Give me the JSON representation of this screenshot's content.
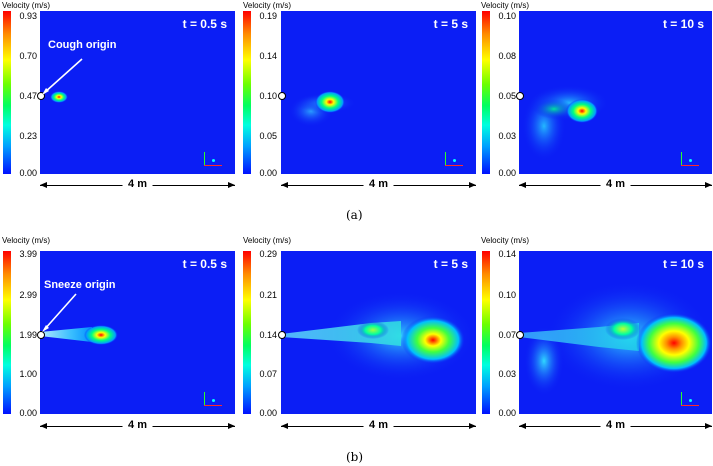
{
  "captions": {
    "a": "(a)",
    "b": "(b)"
  },
  "scale_label": "4 m",
  "rows": [
    {
      "origin_label": "Cough origin",
      "panels": [
        {
          "velocity_label": "Velocity (m/s)",
          "ticks": [
            "0.93",
            "0.70",
            "0.47",
            "0.23",
            "0.00"
          ],
          "time": "t = 0.5 s"
        },
        {
          "velocity_label": "Velocity (m/s)",
          "ticks": [
            "0.19",
            "0.14",
            "0.10",
            "0.05",
            "0.00"
          ],
          "time": "t = 5 s"
        },
        {
          "velocity_label": "Velocity (m/s)",
          "ticks": [
            "0.10",
            "0.08",
            "0.05",
            "0.03",
            "0.00"
          ],
          "time": "t = 10 s"
        }
      ]
    },
    {
      "origin_label": "Sneeze origin",
      "panels": [
        {
          "velocity_label": "Velocity (m/s)",
          "ticks": [
            "3.99",
            "2.99",
            "1.99",
            "1.00",
            "0.00"
          ],
          "time": "t = 0.5 s"
        },
        {
          "velocity_label": "Velocity (m/s)",
          "ticks": [
            "0.29",
            "0.21",
            "0.14",
            "0.07",
            "0.00"
          ],
          "time": "t = 5 s"
        },
        {
          "velocity_label": "Velocity (m/s)",
          "ticks": [
            "0.14",
            "0.10",
            "0.07",
            "0.03",
            "0.00"
          ],
          "time": "t = 10 s"
        }
      ]
    }
  ],
  "colors": {
    "background": "#0b1ef5",
    "peak": "#ff0000"
  }
}
